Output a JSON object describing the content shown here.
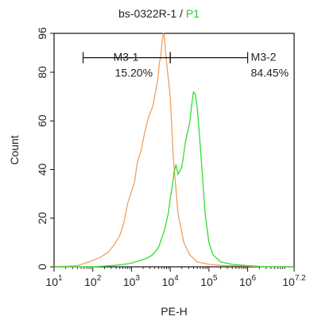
{
  "chart_data": {
    "type": "line",
    "title_parts": [
      {
        "text": "bs-0322R-1 / ",
        "color": "#222222"
      },
      {
        "text": "P1",
        "color": "#22cc22"
      }
    ],
    "xlabel": "PE-H",
    "ylabel": "Count",
    "x_scale": "log",
    "xlim": [
      1,
      7.2
    ],
    "ylim": [
      0,
      96
    ],
    "x_ticks": [
      {
        "base": "10",
        "exp": "1",
        "pos": 1
      },
      {
        "base": "10",
        "exp": "2",
        "pos": 2
      },
      {
        "base": "10",
        "exp": "3",
        "pos": 3
      },
      {
        "base": "10",
        "exp": "4",
        "pos": 4
      },
      {
        "base": "10",
        "exp": "5",
        "pos": 5
      },
      {
        "base": "10",
        "exp": "6",
        "pos": 6
      },
      {
        "base": "10",
        "exp": "7.2",
        "pos": 7.2
      }
    ],
    "y_ticks": [
      "0",
      "20",
      "40",
      "60",
      "80",
      "96"
    ],
    "y_tick_values": [
      0,
      20,
      40,
      60,
      80,
      96
    ],
    "series": [
      {
        "color": "#f0a060",
        "x": [
          1.0,
          1.6,
          1.9,
          2.2,
          2.4,
          2.55,
          2.7,
          2.8,
          2.9,
          3.0,
          3.08,
          3.15,
          3.25,
          3.35,
          3.45,
          3.55,
          3.62,
          3.68,
          3.72,
          3.75,
          3.78,
          3.82,
          3.85,
          3.88,
          3.92,
          3.96,
          4.0,
          4.08,
          4.2,
          4.35,
          4.5,
          4.7,
          5.0,
          5.4,
          6.0,
          6.5,
          7.2
        ],
        "y": [
          0,
          0.5,
          2,
          4,
          6,
          9,
          13,
          18,
          26,
          31,
          35,
          43,
          48,
          56,
          62,
          66,
          72,
          77,
          84,
          86,
          91,
          96,
          95,
          88,
          82,
          76,
          70,
          45,
          22,
          10,
          5,
          2,
          1,
          0.5,
          0.3,
          0,
          0
        ]
      },
      {
        "color": "#33dd33",
        "x": [
          1.0,
          2.0,
          2.5,
          2.8,
          3.0,
          3.2,
          3.4,
          3.55,
          3.7,
          3.85,
          3.95,
          4.0,
          4.05,
          4.1,
          4.15,
          4.2,
          4.3,
          4.4,
          4.5,
          4.55,
          4.6,
          4.65,
          4.7,
          4.75,
          4.82,
          4.9,
          5.0,
          5.1,
          5.3,
          5.6,
          6.0,
          6.5,
          7.2
        ],
        "y": [
          0,
          0,
          0.5,
          1,
          1.5,
          2.5,
          3.5,
          5,
          8,
          15,
          22,
          28,
          33,
          39,
          42,
          38,
          41,
          52,
          59,
          66,
          72,
          71,
          65,
          55,
          40,
          22,
          10,
          5,
          2,
          1,
          0.5,
          0,
          0
        ]
      }
    ],
    "markers": [
      {
        "label": "M3-1",
        "percent": "15.20%",
        "x_start": 1.75,
        "x_end": 4.0,
        "y": 86
      },
      {
        "label": "M3-2",
        "percent": "84.45%",
        "x_start": 4.0,
        "x_end": 6.0,
        "y": 86
      }
    ]
  }
}
